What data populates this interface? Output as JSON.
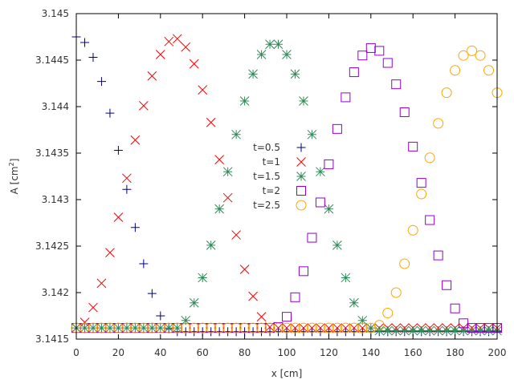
{
  "chart_data": {
    "type": "scatter",
    "xlabel": "x [cm]",
    "ylabel": "A [cm",
    "ylabel_sup": "2",
    "ylabel_end": "]",
    "xlim": [
      0,
      200
    ],
    "ylim": [
      3.1415,
      3.145
    ],
    "xticks": [
      0,
      20,
      40,
      60,
      80,
      100,
      120,
      140,
      160,
      180,
      200
    ],
    "xtick_labels": [
      "0",
      "20",
      "40",
      "60",
      "80",
      "100",
      "120",
      "140",
      "160",
      "180",
      "200"
    ],
    "yticks": [
      3.1415,
      3.142,
      3.1425,
      3.143,
      3.1435,
      3.144,
      3.1445,
      3.145
    ],
    "ytick_labels": [
      "3.1415",
      "3.142",
      "3.1425",
      "3.143",
      "3.1435",
      "3.144",
      "3.1445",
      "3.145"
    ],
    "grid": false,
    "legend_placement": "center",
    "x": [
      0,
      4,
      8,
      12,
      16,
      20,
      24,
      28,
      32,
      36,
      40,
      44,
      48,
      52,
      56,
      60,
      64,
      68,
      72,
      76,
      80,
      84,
      88,
      92,
      96,
      100,
      104,
      108,
      112,
      116,
      120,
      124,
      128,
      132,
      136,
      140,
      144,
      148,
      152,
      156,
      160,
      164,
      168,
      172,
      176,
      180,
      184,
      188,
      192,
      196,
      200
    ],
    "series": [
      {
        "name": "t=0.5",
        "marker": "plus",
        "color": "#000080",
        "values": [
          3.14475,
          3.14469,
          3.14453,
          3.14427,
          3.14393,
          3.14353,
          3.14311,
          3.1427,
          3.14231,
          3.14199,
          3.14175,
          3.14161,
          3.14158,
          3.14158,
          3.14158,
          3.14158,
          3.14158,
          3.14158,
          3.14158,
          3.14158,
          3.14158,
          3.14158,
          3.14158,
          3.14158,
          3.14158,
          3.14158,
          3.14158,
          3.14158,
          3.14158,
          3.14158,
          3.14158,
          3.14158,
          3.14158,
          3.14158,
          3.14158,
          3.14158,
          3.14158,
          3.14158,
          3.14158,
          3.14158,
          3.14158,
          3.14158,
          3.14158,
          3.14158,
          3.14158,
          3.14158,
          3.14158,
          3.14158,
          3.14158,
          3.14158,
          3.14158
        ]
      },
      {
        "name": "t=1",
        "marker": "cross",
        "color": "#ff0000",
        "values": [
          3.14162,
          3.14168,
          3.14184,
          3.1421,
          3.14243,
          3.14281,
          3.14323,
          3.14364,
          3.14401,
          3.14433,
          3.14456,
          3.1447,
          3.14473,
          3.14464,
          3.14446,
          3.14418,
          3.14383,
          3.14343,
          3.14302,
          3.14262,
          3.14225,
          3.14196,
          3.14174,
          3.14163,
          3.14162,
          3.14162,
          3.14162,
          3.14162,
          3.14162,
          3.14162,
          3.14162,
          3.14162,
          3.14162,
          3.14162,
          3.14162,
          3.14162,
          3.14162,
          3.14162,
          3.14162,
          3.14162,
          3.14162,
          3.14162,
          3.14162,
          3.14162,
          3.14162,
          3.14162,
          3.14162,
          3.14162,
          3.14162,
          3.14162,
          3.14162
        ]
      },
      {
        "name": "t=1.5",
        "marker": "star",
        "color": "#2e8b57",
        "values": [
          3.14162,
          3.14162,
          3.14162,
          3.14162,
          3.14162,
          3.14162,
          3.14162,
          3.14162,
          3.14162,
          3.14162,
          3.14162,
          3.14162,
          3.14162,
          3.1417,
          3.14189,
          3.14216,
          3.14251,
          3.1429,
          3.1433,
          3.1437,
          3.14406,
          3.14435,
          3.14456,
          3.14467,
          3.14467,
          3.14456,
          3.14435,
          3.14406,
          3.1437,
          3.1433,
          3.1429,
          3.14251,
          3.14216,
          3.14189,
          3.1417,
          3.14162,
          3.14159,
          3.14159,
          3.14159,
          3.14159,
          3.14159,
          3.14159,
          3.14159,
          3.14159,
          3.14159,
          3.14159,
          3.14159,
          3.14159,
          3.14159,
          3.14159,
          3.14159
        ]
      },
      {
        "name": "t=2",
        "marker": "square",
        "color": "#9400d3",
        "values": [
          3.14162,
          3.14162,
          3.14162,
          3.14162,
          3.14162,
          3.14162,
          3.14162,
          3.14162,
          3.14162,
          3.14162,
          3.14162,
          3.14162,
          3.14162,
          3.14162,
          3.14162,
          3.14162,
          3.14162,
          3.14162,
          3.14162,
          3.14162,
          3.14162,
          3.14162,
          3.14162,
          3.14162,
          3.14163,
          3.14174,
          3.14195,
          3.14223,
          3.14259,
          3.14297,
          3.14338,
          3.14376,
          3.1441,
          3.14437,
          3.14455,
          3.14463,
          3.1446,
          3.14447,
          3.14424,
          3.14394,
          3.14357,
          3.14318,
          3.14278,
          3.1424,
          3.14208,
          3.14183,
          3.14167,
          3.14162,
          3.14162,
          3.14162,
          3.14162
        ]
      },
      {
        "name": "t=2.5",
        "marker": "circle",
        "color": "#ffa500",
        "values": [
          3.14162,
          3.14162,
          3.14162,
          3.14162,
          3.14162,
          3.14162,
          3.14162,
          3.14162,
          3.14162,
          3.14162,
          3.14162,
          3.14162,
          3.14162,
          3.14162,
          3.14162,
          3.14162,
          3.14162,
          3.14162,
          3.14162,
          3.14162,
          3.14162,
          3.14162,
          3.14162,
          3.14162,
          3.14162,
          3.14162,
          3.14162,
          3.14162,
          3.14162,
          3.14162,
          3.14162,
          3.14162,
          3.14162,
          3.14162,
          3.14162,
          3.14162,
          3.14165,
          3.14178,
          3.142,
          3.14231,
          3.14267,
          3.14306,
          3.14345,
          3.14382,
          3.14415,
          3.14439,
          3.14455,
          3.1446,
          3.14455,
          3.14439,
          3.14415
        ]
      }
    ]
  }
}
